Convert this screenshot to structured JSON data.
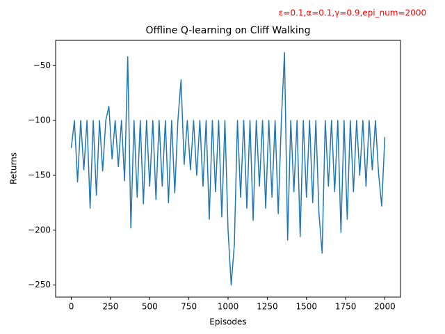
{
  "chart_data": {
    "type": "line",
    "title": "Offline Q-learning on Cliff Walking",
    "annotation": "ε=0.1,α=0.1,γ=0.9,epi_num=2000",
    "x_label": "Episodes",
    "y_label": "Returns",
    "color": "#1f77b4",
    "xlim": [
      -100,
      2100
    ],
    "ylim": [
      -261,
      -27
    ],
    "xticks": [
      0,
      250,
      500,
      750,
      1000,
      1250,
      1500,
      1750,
      2000
    ],
    "yticks": [
      {
        "value": -250,
        "label": "−250"
      },
      {
        "value": -200,
        "label": "−200"
      },
      {
        "value": -150,
        "label": "−150"
      },
      {
        "value": -100,
        "label": "−100"
      },
      {
        "value": -50,
        "label": "−50"
      }
    ],
    "x": [
      0,
      20,
      40,
      60,
      80,
      100,
      120,
      140,
      160,
      180,
      200,
      220,
      240,
      260,
      280,
      300,
      320,
      340,
      360,
      380,
      400,
      420,
      440,
      460,
      480,
      500,
      520,
      540,
      560,
      580,
      600,
      620,
      640,
      660,
      680,
      700,
      720,
      740,
      760,
      780,
      800,
      820,
      840,
      860,
      880,
      900,
      920,
      940,
      960,
      980,
      1000,
      1020,
      1040,
      1060,
      1080,
      1100,
      1120,
      1140,
      1160,
      1180,
      1200,
      1220,
      1240,
      1260,
      1280,
      1300,
      1320,
      1340,
      1360,
      1380,
      1400,
      1420,
      1440,
      1460,
      1480,
      1500,
      1520,
      1540,
      1560,
      1580,
      1600,
      1620,
      1640,
      1660,
      1680,
      1700,
      1720,
      1740,
      1760,
      1780,
      1800,
      1820,
      1840,
      1860,
      1880,
      1900,
      1920,
      1940,
      1960,
      1980,
      2000
    ],
    "values": [
      -125,
      -100,
      -156,
      -100,
      -145,
      -100,
      -180,
      -100,
      -168,
      -100,
      -146,
      -100,
      -87,
      -135,
      -100,
      -142,
      -100,
      -155,
      -42,
      -198,
      -100,
      -170,
      -100,
      -176,
      -100,
      -160,
      -100,
      -172,
      -100,
      -160,
      -100,
      -175,
      -100,
      -166,
      -100,
      -63,
      -140,
      -100,
      -145,
      -100,
      -150,
      -100,
      -160,
      -100,
      -190,
      -100,
      -165,
      -100,
      -188,
      -100,
      -200,
      -250,
      -213,
      -100,
      -170,
      -100,
      -180,
      -100,
      -191,
      -100,
      -160,
      -100,
      -180,
      -100,
      -170,
      -100,
      -185,
      -100,
      -38,
      -209,
      -100,
      -165,
      -100,
      -206,
      -100,
      -170,
      -100,
      -175,
      -100,
      -185,
      -221,
      -100,
      -160,
      -100,
      -165,
      -100,
      -202,
      -100,
      -190,
      -100,
      -165,
      -100,
      -150,
      -100,
      -160,
      -100,
      -145,
      -100,
      -148,
      -178,
      -115
    ]
  }
}
